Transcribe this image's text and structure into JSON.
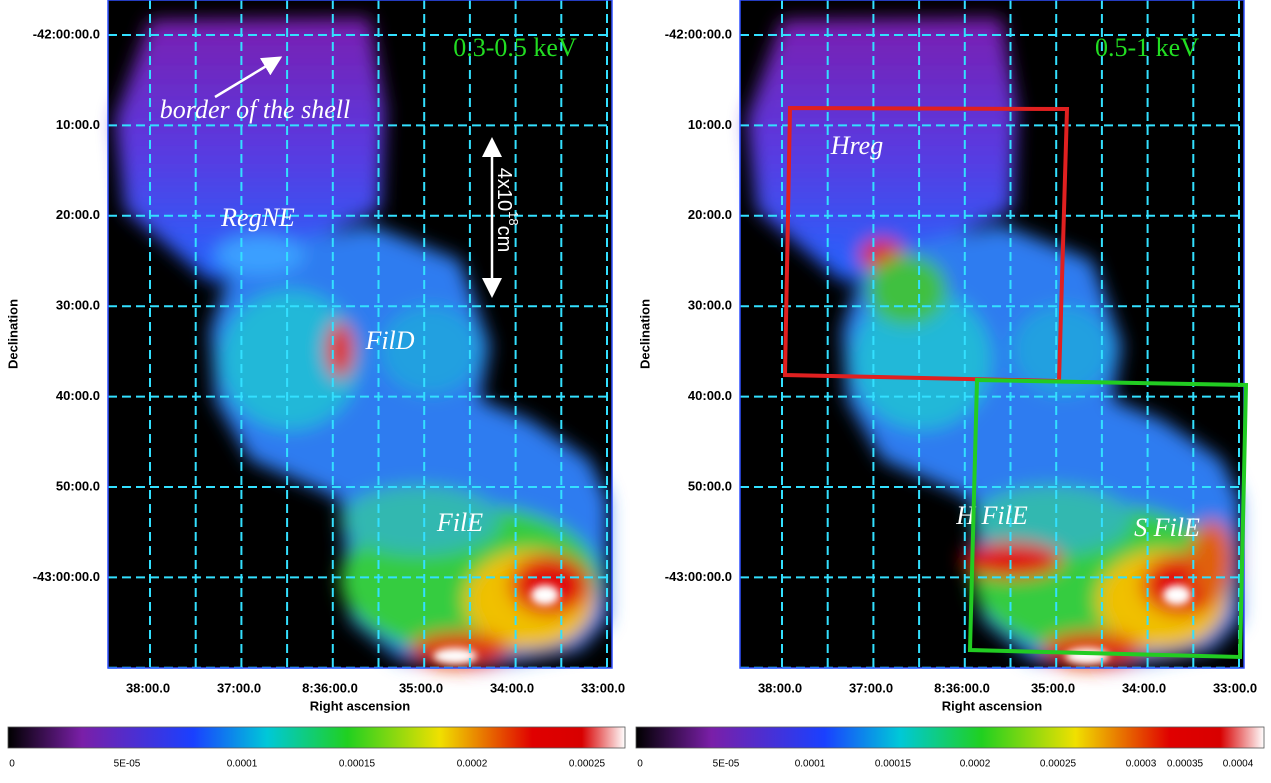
{
  "panels": [
    {
      "energy_label": "0.3-0.5 keV",
      "annotations": [
        "border of the shell",
        "RegNE",
        "FilD",
        "FilE"
      ],
      "scale_bar": {
        "base": "4x10",
        "exponent": "18",
        "unit": "cm"
      },
      "x_ticks": [
        "38:00.0",
        "37:00.0",
        "8:36:00.0",
        "35:00.0",
        "34:00.0",
        "33:00.0"
      ],
      "y_ticks": [
        "-42:00:00.0",
        "10:00.0",
        "20:00.0",
        "30:00.0",
        "40:00.0",
        "50:00.0",
        "-43:00:00.0"
      ],
      "x_label": "Right ascension",
      "y_label": "Declination",
      "colorbar_ticks": [
        "0",
        "5E-05",
        "0.0001",
        "0.00015",
        "0.0002",
        "0.00025"
      ]
    },
    {
      "energy_label": "0.5-1 keV",
      "annotations": [
        "Hreg",
        "H FilE",
        "S FilE"
      ],
      "x_ticks": [
        "38:00.0",
        "37:00.0",
        "8:36:00.0",
        "35:00.0",
        "34:00.0",
        "33:00.0"
      ],
      "y_ticks": [
        "-42:00:00.0",
        "10:00.0",
        "20:00.0",
        "30:00.0",
        "40:00.0",
        "50:00.0",
        "-43:00:00.0"
      ],
      "x_label": "Right ascension",
      "y_label": "Declination",
      "colorbar_ticks": [
        "0",
        "5E-05",
        "0.0001",
        "0.00015",
        "0.0002",
        "0.00025",
        "0.0003",
        "0.00035",
        "0.0004"
      ]
    }
  ]
}
